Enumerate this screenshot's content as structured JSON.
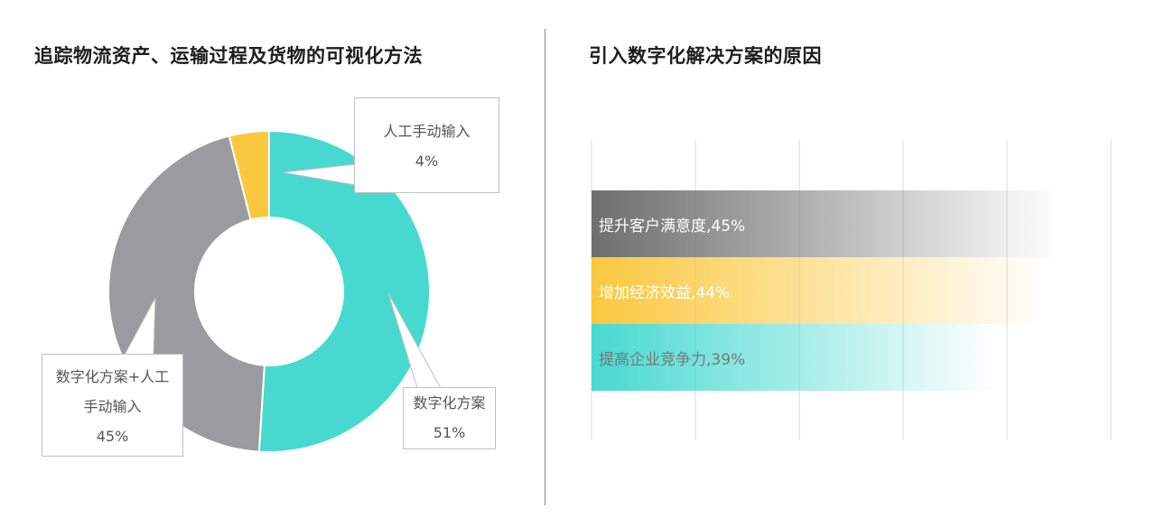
{
  "left_panel": {
    "title": "追踪物流资产、运输过程及货物的可视化方法"
  },
  "right_panel": {
    "title": "引入数字化解决方案的原因"
  },
  "colors": {
    "teal": "#47d9d0",
    "gray": "#9b9b9f",
    "yellow": "#fac83f",
    "dark_gray": "#6e6e6e",
    "grid": "#d9d9d9"
  },
  "chart_data": [
    {
      "type": "pie",
      "title": "追踪物流资产、运输过程及货物的可视化方法",
      "style": "donut",
      "slices": [
        {
          "name": "数字化方案",
          "value": 51,
          "label": "51%",
          "color": "#47d9d0"
        },
        {
          "name": "数字化方案+人工手动输入",
          "value": 45,
          "label": "45%",
          "color": "#9b9b9f"
        },
        {
          "name": "人工手动输入",
          "value": 4,
          "label": "4%",
          "color": "#fac83f"
        }
      ],
      "callouts": {
        "manual": {
          "lines": [
            "人工手动输入",
            "4%"
          ]
        },
        "combined": {
          "lines": [
            "数字化方案+人工",
            "手动输入",
            "45%"
          ]
        },
        "digital": {
          "lines": [
            "数字化方案",
            "51%"
          ]
        }
      }
    },
    {
      "type": "bar",
      "orientation": "horizontal",
      "title": "引入数字化解决方案的原因",
      "categories": [
        "提升客户满意度",
        "增加经济效益",
        "提高企业竞争力"
      ],
      "values": [
        45,
        44,
        39
      ],
      "labels": [
        "提升客户满意度,45%",
        "增加经济效益,44%",
        "提高企业竞争力,39%"
      ],
      "colors": [
        "#6e6e6e",
        "#fac83f",
        "#47d9d0"
      ],
      "xlim": [
        0,
        50
      ],
      "grid": true
    }
  ]
}
